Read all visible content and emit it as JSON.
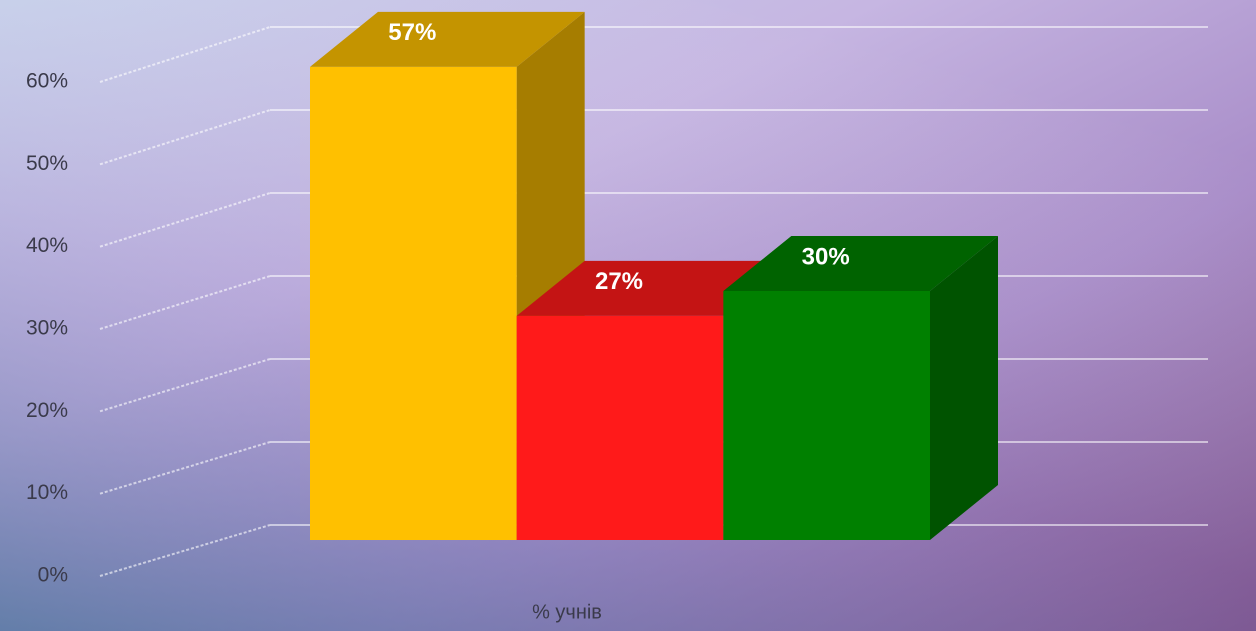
{
  "chart_data": {
    "type": "bar3d",
    "categories": [
      null,
      null,
      null
    ],
    "values": [
      57,
      27,
      30
    ],
    "value_labels": [
      "57%",
      "27%",
      "30%"
    ],
    "colors": [
      "#ffc000",
      "#ff1a1a",
      "#008000"
    ],
    "x_label": "% учнів",
    "ylim": [
      0,
      60
    ],
    "yticks": [
      {
        "value": 0,
        "label": "0%"
      },
      {
        "value": 10,
        "label": "10%"
      },
      {
        "value": 20,
        "label": "20%"
      },
      {
        "value": 30,
        "label": "30%"
      },
      {
        "value": 40,
        "label": "40%"
      },
      {
        "value": 50,
        "label": "50%"
      },
      {
        "value": 60,
        "label": "60%"
      }
    ],
    "grid": true
  }
}
